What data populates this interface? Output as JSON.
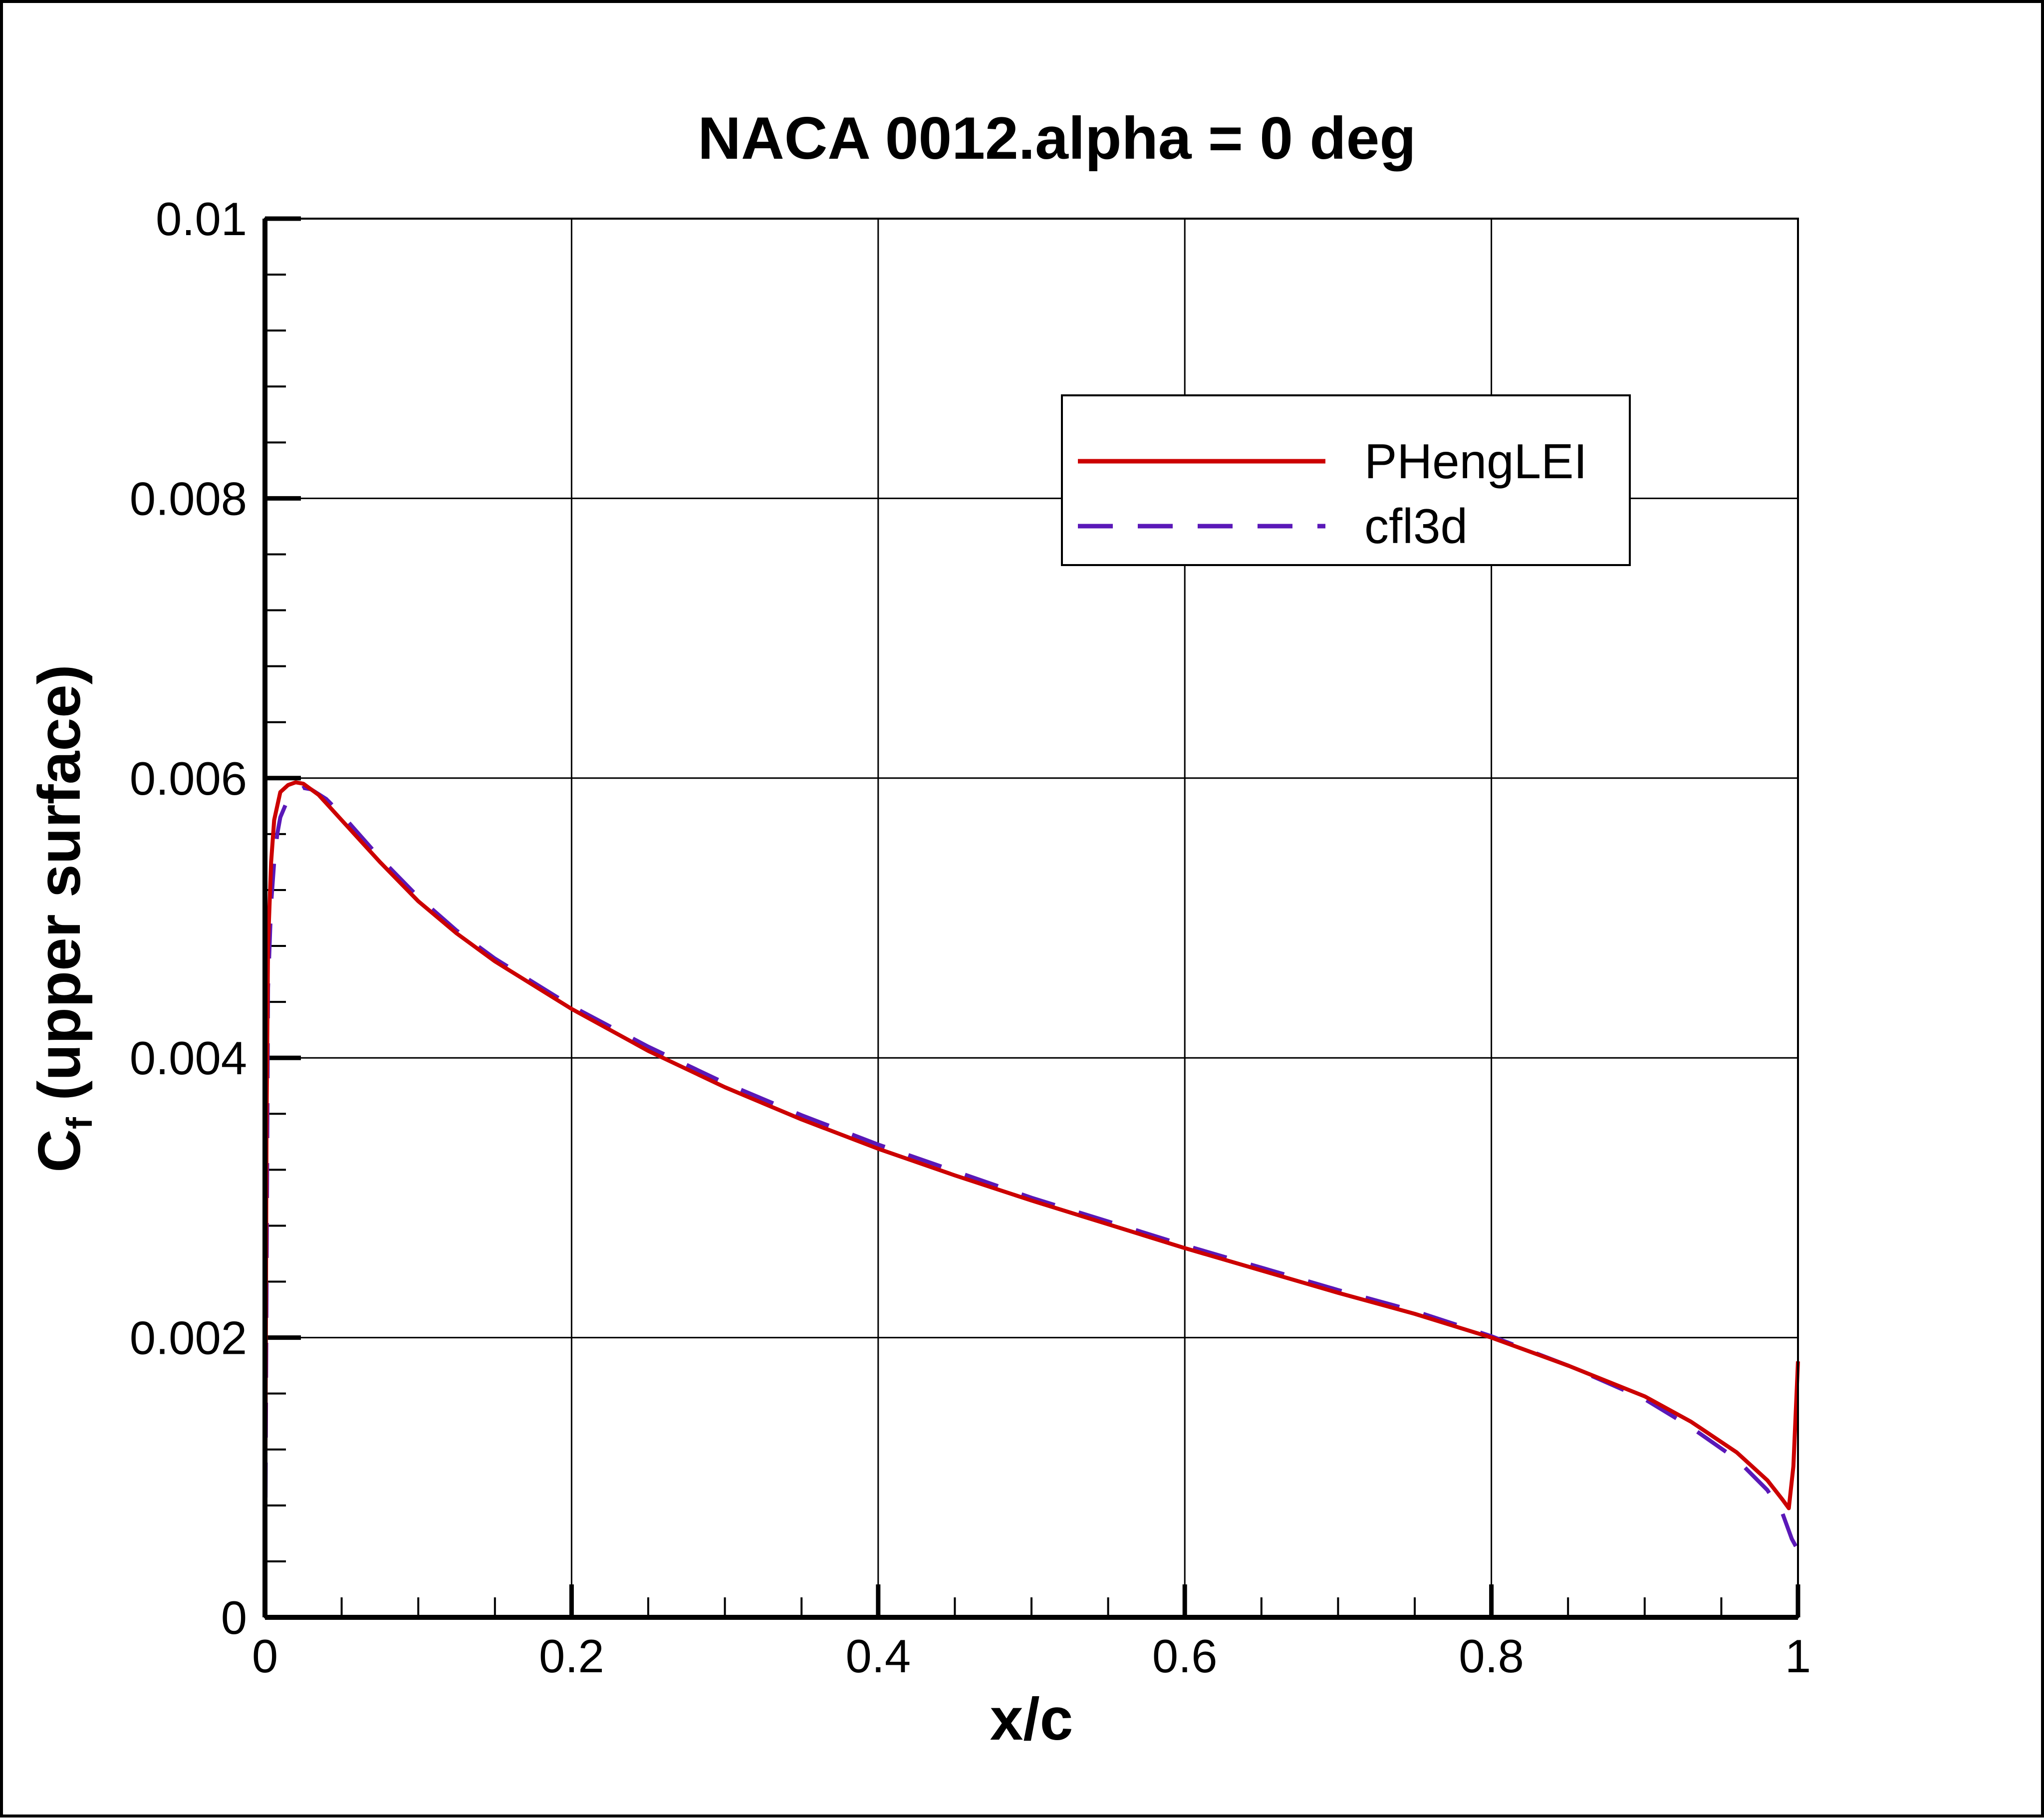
{
  "chart_data": {
    "type": "line",
    "title": "NACA 0012.alpha = 0 deg",
    "xlabel": "x/c",
    "ylabel": "C",
    "ylabel_subscript": "f",
    "ylabel_suffix": " (upper surface)",
    "xlim": [
      0,
      1
    ],
    "ylim": [
      0,
      0.01
    ],
    "xticks": [
      0,
      0.2,
      0.4,
      0.6,
      0.8,
      1
    ],
    "xtick_labels": [
      "0",
      "0.2",
      "0.4",
      "0.6",
      "0.8",
      "1"
    ],
    "yticks": [
      0,
      0.002,
      0.004,
      0.006,
      0.008,
      0.01
    ],
    "ytick_labels": [
      "0",
      "0.002",
      "0.004",
      "0.006",
      "0.008",
      "0.01"
    ],
    "grid": true,
    "legend_position": "upper-right",
    "series": [
      {
        "name": "PHengLEI",
        "color": "#cc0000",
        "style": "solid",
        "x": [
          0.0,
          0.001,
          0.002,
          0.004,
          0.006,
          0.01,
          0.015,
          0.02,
          0.025,
          0.03,
          0.035,
          0.04,
          0.05,
          0.075,
          0.1,
          0.125,
          0.15,
          0.2,
          0.25,
          0.3,
          0.35,
          0.4,
          0.45,
          0.5,
          0.55,
          0.6,
          0.65,
          0.7,
          0.75,
          0.8,
          0.85,
          0.9,
          0.93,
          0.96,
          0.98,
          0.99,
          0.994,
          0.997,
          1.0
        ],
        "y": [
          0.0,
          0.0035,
          0.0048,
          0.0054,
          0.0057,
          0.0059,
          0.00595,
          0.00597,
          0.00596,
          0.00592,
          0.00588,
          0.00582,
          0.0057,
          0.0054,
          0.00512,
          0.00489,
          0.00469,
          0.00435,
          0.00405,
          0.00379,
          0.00356,
          0.00335,
          0.00316,
          0.00298,
          0.00281,
          0.00264,
          0.00248,
          0.00232,
          0.00217,
          0.002,
          0.0018,
          0.00158,
          0.0014,
          0.00118,
          0.00098,
          0.00084,
          0.00078,
          0.00108,
          0.00183
        ]
      },
      {
        "name": "cfl3d",
        "color": "#5a18b8",
        "style": "dashed",
        "x": [
          0.0,
          0.002,
          0.004,
          0.006,
          0.008,
          0.01,
          0.015,
          0.02,
          0.025,
          0.03,
          0.04,
          0.05,
          0.075,
          0.1,
          0.125,
          0.15,
          0.2,
          0.25,
          0.3,
          0.35,
          0.4,
          0.45,
          0.5,
          0.55,
          0.6,
          0.65,
          0.7,
          0.75,
          0.8,
          0.85,
          0.9,
          0.93,
          0.96,
          0.98,
          0.99,
          0.996,
          1.0
        ],
        "y": [
          0.0,
          0.0045,
          0.0051,
          0.0054,
          0.0056,
          0.00572,
          0.00585,
          0.0059,
          0.00593,
          0.00592,
          0.00585,
          0.00574,
          0.00543,
          0.00515,
          0.00491,
          0.00471,
          0.00437,
          0.00408,
          0.00382,
          0.00359,
          0.00338,
          0.00319,
          0.003,
          0.00283,
          0.00266,
          0.0025,
          0.00234,
          0.00219,
          0.00201,
          0.0018,
          0.00156,
          0.00136,
          0.00113,
          0.00091,
          0.00074,
          0.00056,
          0.00048
        ]
      }
    ]
  }
}
